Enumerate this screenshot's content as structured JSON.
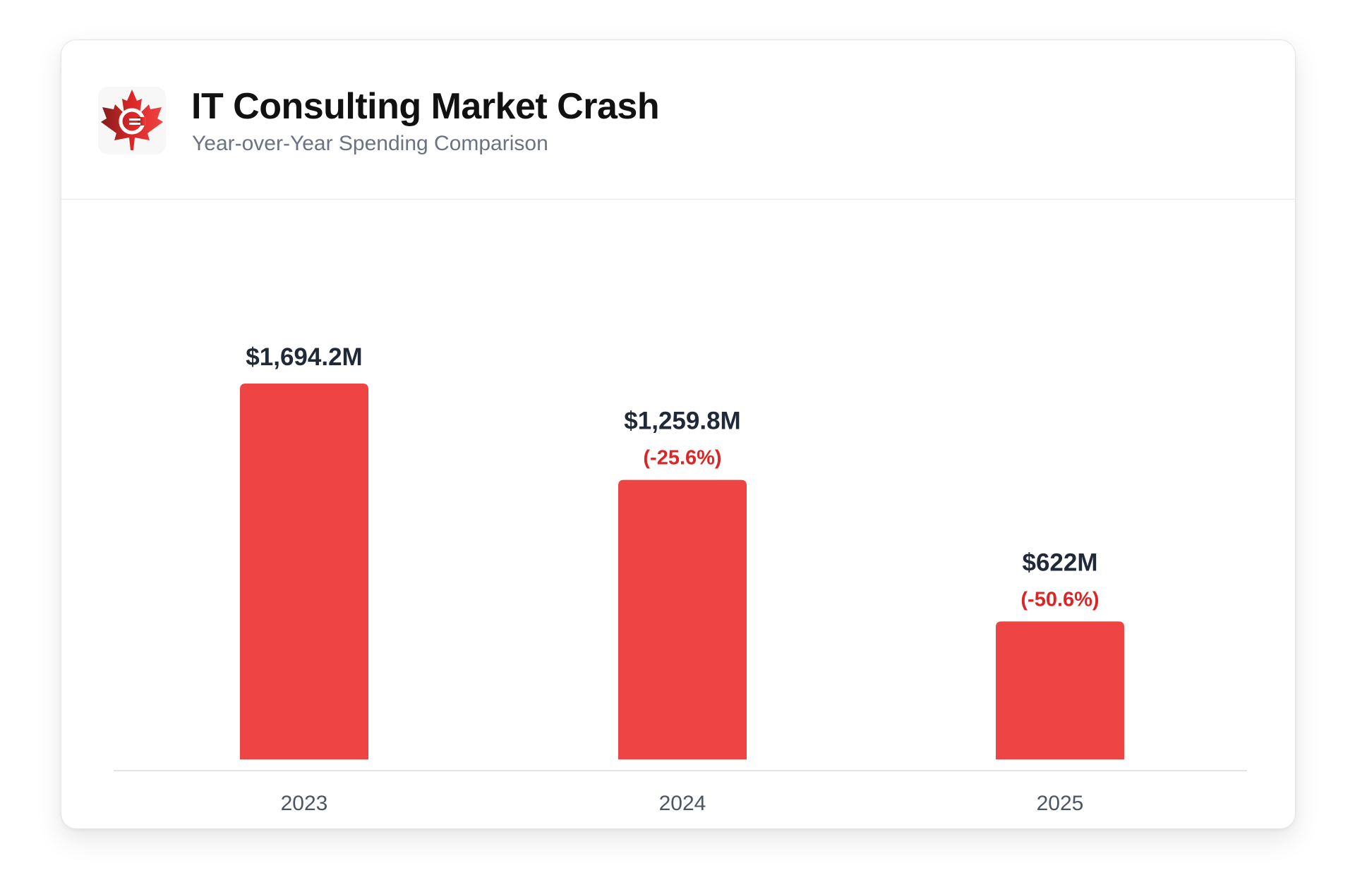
{
  "header": {
    "title": "IT Consulting Market Crash",
    "subtitle": "Year-over-Year Spending Comparison",
    "logo_icon": "canadian-maple-leaf-c-logo-icon"
  },
  "chart_data": {
    "type": "bar",
    "categories": [
      "2023",
      "2024",
      "2025"
    ],
    "values": [
      1694.2,
      1259.8,
      622
    ],
    "value_labels": [
      "$1,694.2M",
      "$1,259.8M",
      "$622M"
    ],
    "change_labels": [
      "",
      "(-25.6%)",
      "(-50.6%)"
    ],
    "title": "IT Consulting Market Crash",
    "subtitle": "Year-over-Year Spending Comparison",
    "xlabel": "",
    "ylabel": "",
    "ylim": [
      0,
      1694.2
    ],
    "grid": false,
    "legend": "none",
    "colors": {
      "bar": "#ef4444",
      "value_label": "#1f2937",
      "change_label": "#dc2626",
      "tick_label": "#4b5563",
      "baseline": "#d9dce1"
    }
  }
}
